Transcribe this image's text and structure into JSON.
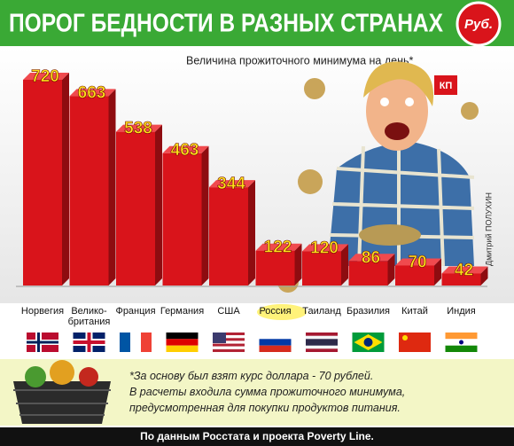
{
  "header": {
    "title": "ПОРОГ БЕДНОСТИ В РАЗНЫХ СТРАНАХ",
    "badge": "Руб.",
    "logo": "КП",
    "credit": "Дмитрий ПОЛУХИН"
  },
  "chart_data": {
    "type": "bar",
    "subtitle": "Величина прожиточного минимума на день*",
    "categories": [
      "Норвегия",
      "Велико-\nбритания",
      "Франция",
      "Германия",
      "США",
      "Россия",
      "Таиланд",
      "Бразилия",
      "Китай",
      "Индия"
    ],
    "values": [
      720,
      663,
      538,
      463,
      344,
      122,
      120,
      86,
      70,
      42
    ],
    "color": "#d9141b",
    "highlight": "Россия"
  },
  "footnote": {
    "lines": [
      "*За основу был взят курс доллара - 70 рублей.",
      "В расчеты входила сумма прожиточного минимума,",
      "предусмотренная для покупки продуктов питания."
    ]
  },
  "source": "По данным Росстата и проекта Poverty Line."
}
